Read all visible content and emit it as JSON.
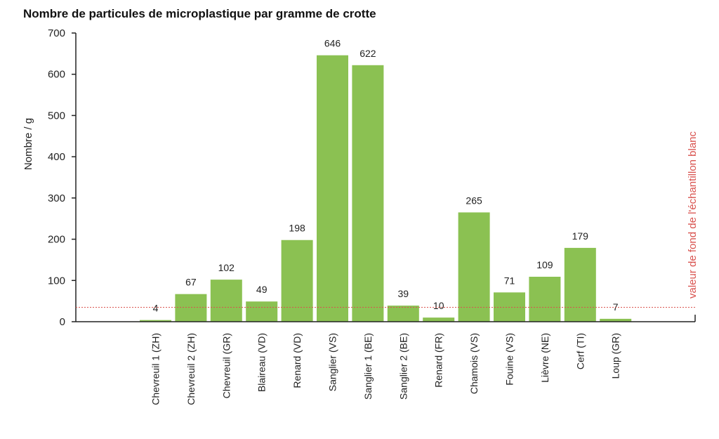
{
  "chart_data": {
    "type": "bar",
    "title": "Nombre de particules de microplastique par gramme de crotte",
    "ylabel": "Nombre / g",
    "xlabel": "",
    "ylim": [
      0,
      700
    ],
    "yticks": [
      0,
      100,
      200,
      300,
      400,
      500,
      600,
      700
    ],
    "categories": [
      "Chevreuil  1 (ZH)",
      "Chevreuil  2 (ZH)",
      "Chevreuil  (GR)",
      "Blaireau (VD)",
      "Renard (VD)",
      "Sanglier (VS)",
      "Sanglier 1 (BE)",
      "Sanglier 2 (BE)",
      "Renard (FR)",
      "Chamois (VS)",
      "Fouine (VS)",
      "Lièvre (NE)",
      "Cerf (TI)",
      "Loup (GR)"
    ],
    "values": [
      4,
      67,
      102,
      49,
      198,
      646,
      622,
      39,
      10,
      265,
      71,
      109,
      179,
      7
    ],
    "bar_color": "#8bc152",
    "reference_line": {
      "value": 35,
      "label": "valeur de fond de l'échantillon blanc",
      "color": "#d9534f"
    },
    "grid": false,
    "legend": "none"
  }
}
